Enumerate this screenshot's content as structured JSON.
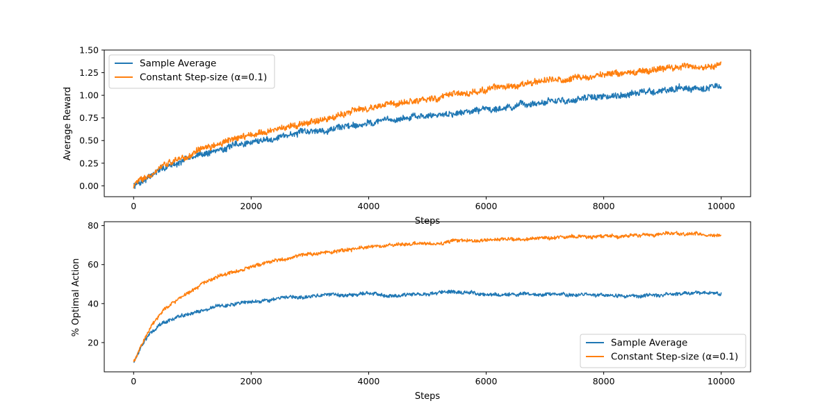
{
  "colors": {
    "sample_average": "#1f77b4",
    "constant_step": "#ff7f0e",
    "axes": "#000000",
    "legend_border": "#cccccc"
  },
  "chart_data": [
    {
      "type": "line",
      "title": "",
      "xlabel": "Steps",
      "ylabel": "Average Reward",
      "xlim": [
        -500,
        10500
      ],
      "ylim": [
        -0.12,
        1.5
      ],
      "xticks": [
        0,
        2000,
        4000,
        6000,
        8000,
        10000
      ],
      "xtick_labels": [
        "0",
        "2000",
        "4000",
        "6000",
        "8000",
        "10000"
      ],
      "yticks": [
        0.0,
        0.25,
        0.5,
        0.75,
        1.0,
        1.25,
        1.5
      ],
      "ytick_labels": [
        "0.00",
        "0.25",
        "0.50",
        "0.75",
        "1.00",
        "1.25",
        "1.50"
      ],
      "legend_position": "upper-left",
      "grid": false,
      "noise_amplitude": 0.03,
      "series": [
        {
          "name": "Sample Average",
          "color_key": "sample_average",
          "x": [
            0,
            50,
            100,
            200,
            300,
            500,
            750,
            1000,
            1500,
            2000,
            2500,
            3000,
            3500,
            4000,
            4500,
            5000,
            5500,
            6000,
            6500,
            7000,
            7500,
            8000,
            8500,
            9000,
            9500,
            10000
          ],
          "y": [
            0.0,
            0.02,
            0.04,
            0.08,
            0.12,
            0.19,
            0.26,
            0.32,
            0.41,
            0.48,
            0.55,
            0.6,
            0.65,
            0.7,
            0.74,
            0.77,
            0.81,
            0.85,
            0.88,
            0.92,
            0.95,
            0.99,
            1.02,
            1.05,
            1.08,
            1.1
          ]
        },
        {
          "name": "Constant Step-size (α=0.1)",
          "color_key": "constant_step",
          "x": [
            0,
            50,
            100,
            200,
            300,
            500,
            750,
            1000,
            1500,
            2000,
            2500,
            3000,
            3500,
            4000,
            4500,
            5000,
            5500,
            6000,
            6500,
            7000,
            7500,
            8000,
            8500,
            9000,
            9500,
            10000
          ],
          "y": [
            0.0,
            0.03,
            0.05,
            0.1,
            0.14,
            0.21,
            0.29,
            0.36,
            0.47,
            0.57,
            0.64,
            0.71,
            0.78,
            0.85,
            0.91,
            0.96,
            1.01,
            1.06,
            1.1,
            1.15,
            1.19,
            1.23,
            1.26,
            1.29,
            1.32,
            1.33
          ]
        }
      ]
    },
    {
      "type": "line",
      "title": "",
      "xlabel": "Steps",
      "ylabel": "% Optimal Action",
      "xlim": [
        -500,
        10500
      ],
      "ylim": [
        5,
        82
      ],
      "xticks": [
        0,
        2000,
        4000,
        6000,
        8000,
        10000
      ],
      "xtick_labels": [
        "0",
        "2000",
        "4000",
        "6000",
        "8000",
        "10000"
      ],
      "yticks": [
        20,
        40,
        60,
        80
      ],
      "ytick_labels": [
        "20",
        "40",
        "60",
        "80"
      ],
      "legend_position": "lower-right",
      "grid": false,
      "noise_amplitude": 0.8,
      "series": [
        {
          "name": "Sample Average",
          "color_key": "sample_average",
          "x": [
            0,
            50,
            100,
            200,
            300,
            400,
            500,
            750,
            1000,
            1250,
            1500,
            2000,
            2500,
            3000,
            3500,
            4000,
            4500,
            5000,
            5500,
            6000,
            6500,
            7000,
            7500,
            8000,
            8500,
            9000,
            9500,
            10000
          ],
          "y": [
            10,
            13,
            16,
            21,
            25,
            28,
            30,
            33,
            35,
            37,
            39,
            41,
            42.5,
            43.5,
            44.5,
            45,
            44.5,
            45,
            45.5,
            45,
            44.5,
            44.5,
            44.5,
            44.5,
            44,
            44.5,
            45,
            45.5
          ]
        },
        {
          "name": "Constant Step-size (α=0.1)",
          "color_key": "constant_step",
          "x": [
            0,
            50,
            100,
            200,
            300,
            400,
            500,
            750,
            1000,
            1250,
            1500,
            2000,
            2500,
            3000,
            3500,
            4000,
            4500,
            5000,
            5500,
            6000,
            6500,
            7000,
            7500,
            8000,
            8500,
            9000,
            9500,
            10000
          ],
          "y": [
            10,
            13,
            17,
            23,
            28,
            32,
            36,
            42,
            47,
            51,
            54,
            59,
            62.5,
            65,
            67,
            69,
            70,
            71,
            72,
            73,
            73,
            73.5,
            74,
            74.5,
            75,
            75.5,
            76,
            75
          ]
        }
      ]
    }
  ]
}
